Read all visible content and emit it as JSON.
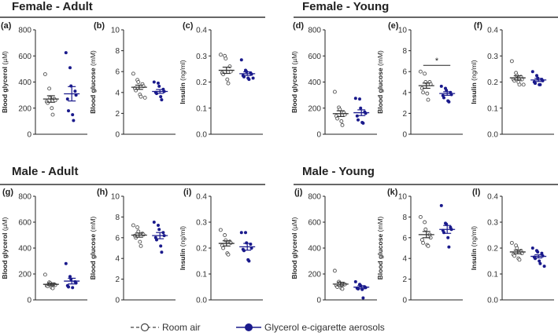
{
  "sections": [
    {
      "title": "Female - Adult"
    },
    {
      "title": "Female - Young"
    },
    {
      "title": "Male - Adult"
    },
    {
      "title": "Male - Young"
    }
  ],
  "legend": {
    "room_air": "Room air",
    "glycerol": "Glycerol e-cigarette aerosols"
  },
  "colors": {
    "room_air": "#333333",
    "glycerol": "#1a1a8c"
  },
  "chart_data": [
    {
      "panel": "(a)",
      "section": "Female - Adult",
      "type": "scatter",
      "ylabel": "Blood glycerol",
      "yunit": "(µM)",
      "ylim": [
        0,
        800
      ],
      "yticks": [
        "0",
        "200",
        "400",
        "600",
        "800"
      ],
      "series": [
        {
          "name": "Room air",
          "values": [
            460,
            350,
            280,
            270,
            260,
            250,
            240,
            200,
            150
          ],
          "mean": 270,
          "sem": 25
        },
        {
          "name": "Glycerol e-cigarette aerosols",
          "values": [
            625,
            510,
            370,
            330,
            300,
            270,
            180,
            150,
            105
          ],
          "mean": 310,
          "sem": 55
        }
      ]
    },
    {
      "panel": "(b)",
      "section": "Female - Adult",
      "type": "scatter",
      "ylabel": "Blood glucose",
      "yunit": "(mM)",
      "ylim": [
        0,
        10
      ],
      "yticks": [
        "0",
        "2",
        "4",
        "6",
        "8",
        "10"
      ],
      "series": [
        {
          "name": "Room air",
          "values": [
            5.8,
            5.2,
            5.0,
            4.8,
            4.6,
            4.4,
            4.2,
            3.8,
            3.6,
            3.5
          ],
          "mean": 4.5,
          "sem": 0.2
        },
        {
          "name": "Glycerol e-cigarette aerosols",
          "values": [
            5.0,
            4.9,
            4.6,
            4.3,
            4.1,
            4.0,
            3.9,
            3.6,
            3.3
          ],
          "mean": 4.1,
          "sem": 0.18
        }
      ]
    },
    {
      "panel": "(c)",
      "section": "Female - Adult",
      "type": "scatter",
      "ylabel": "Insulin",
      "yunit": "(ng/ml)",
      "ylim": [
        0,
        0.4
      ],
      "yticks": [
        "0.0",
        "0.1",
        "0.2",
        "0.3",
        "0.4"
      ],
      "series": [
        {
          "name": "Room air",
          "values": [
            0.305,
            0.3,
            0.29,
            0.26,
            0.24,
            0.235,
            0.23,
            0.21,
            0.195
          ],
          "mean": 0.245,
          "sem": 0.012
        },
        {
          "name": "Glycerol e-cigarette aerosols",
          "values": [
            0.285,
            0.245,
            0.24,
            0.235,
            0.23,
            0.225,
            0.22,
            0.215,
            0.21,
            0.215
          ],
          "mean": 0.232,
          "sem": 0.007
        }
      ]
    },
    {
      "panel": "(d)",
      "section": "Female - Young",
      "type": "scatter",
      "ylabel": "Blood glycerol",
      "yunit": "(µM)",
      "ylim": [
        0,
        800
      ],
      "yticks": [
        "0",
        "200",
        "400",
        "600",
        "800"
      ],
      "series": [
        {
          "name": "Room air",
          "values": [
            325,
            205,
            190,
            165,
            150,
            140,
            120,
            100,
            70
          ],
          "mean": 158,
          "sem": 22
        },
        {
          "name": "Glycerol e-cigarette aerosols",
          "values": [
            275,
            270,
            200,
            170,
            160,
            140,
            110,
            90,
            85
          ],
          "mean": 165,
          "sem": 22
        }
      ]
    },
    {
      "panel": "(e)",
      "section": "Female - Young",
      "type": "scatter",
      "ylabel": "Blood glucose",
      "yunit": "(mM)",
      "ylim": [
        0,
        10
      ],
      "yticks": [
        "0",
        "2",
        "4",
        "6",
        "8",
        "10"
      ],
      "significance": "*",
      "series": [
        {
          "name": "Room air",
          "values": [
            6.0,
            5.8,
            5.0,
            5.0,
            4.8,
            4.4,
            4.0,
            3.9,
            3.3
          ],
          "mean": 4.65,
          "sem": 0.25
        },
        {
          "name": "Glycerol e-cigarette aerosols",
          "values": [
            4.6,
            4.4,
            4.2,
            4.0,
            3.8,
            3.7,
            3.5,
            3.2,
            3.1
          ],
          "mean": 3.9,
          "sem": 0.17
        }
      ]
    },
    {
      "panel": "(f)",
      "section": "Female - Young",
      "type": "scatter",
      "ylabel": "Insulin",
      "yunit": "(ng/ml)",
      "ylim": [
        0,
        0.4
      ],
      "yticks": [
        "0.0",
        "0.1",
        "0.2",
        "0.3",
        "0.4"
      ],
      "series": [
        {
          "name": "Room air",
          "values": [
            0.28,
            0.235,
            0.225,
            0.22,
            0.21,
            0.21,
            0.205,
            0.2,
            0.19,
            0.19
          ],
          "mean": 0.216,
          "sem": 0.008
        },
        {
          "name": "Glycerol e-cigarette aerosols",
          "values": [
            0.24,
            0.225,
            0.215,
            0.21,
            0.205,
            0.2,
            0.195,
            0.19,
            0.19
          ],
          "mean": 0.208,
          "sem": 0.006
        }
      ]
    },
    {
      "panel": "(g)",
      "section": "Male - Adult",
      "type": "scatter",
      "ylabel": "Blood glycerol",
      "yunit": "(µM)",
      "ylim": [
        0,
        800
      ],
      "yticks": [
        "0",
        "200",
        "400",
        "600",
        "800"
      ],
      "series": [
        {
          "name": "Room air",
          "values": [
            195,
            135,
            130,
            120,
            115,
            110,
            105,
            95,
            90
          ],
          "mean": 120,
          "sem": 10
        },
        {
          "name": "Glycerol e-cigarette aerosols",
          "values": [
            280,
            180,
            160,
            140,
            130,
            110,
            100,
            95
          ],
          "mean": 145,
          "sem": 22
        }
      ]
    },
    {
      "panel": "(h)",
      "section": "Male - Adult",
      "type": "scatter",
      "ylabel": "Blood glucose",
      "yunit": "(mM)",
      "ylim": [
        0,
        10
      ],
      "yticks": [
        "0",
        "2",
        "4",
        "6",
        "8",
        "10"
      ],
      "series": [
        {
          "name": "Room air",
          "values": [
            7.2,
            7.0,
            6.6,
            6.4,
            6.3,
            6.2,
            6.0,
            5.6,
            5.2
          ],
          "mean": 6.25,
          "sem": 0.2
        },
        {
          "name": "Glycerol e-cigarette aerosols",
          "values": [
            7.5,
            7.2,
            6.8,
            6.5,
            6.2,
            6.0,
            5.8,
            5.2,
            4.6
          ],
          "mean": 6.2,
          "sem": 0.3
        }
      ]
    },
    {
      "panel": "(i)",
      "section": "Male - Adult",
      "type": "scatter",
      "ylabel": "Insulin",
      "yunit": "(ng/ml)",
      "ylim": [
        0,
        0.4
      ],
      "yticks": [
        "0.0",
        "0.1",
        "0.2",
        "0.3",
        "0.4"
      ],
      "series": [
        {
          "name": "Room air",
          "values": [
            0.27,
            0.25,
            0.23,
            0.225,
            0.22,
            0.21,
            0.2,
            0.18,
            0.175
          ],
          "mean": 0.218,
          "sem": 0.01
        },
        {
          "name": "Glycerol e-cigarette aerosols",
          "values": [
            0.26,
            0.26,
            0.22,
            0.215,
            0.2,
            0.195,
            0.19,
            0.155,
            0.15
          ],
          "mean": 0.205,
          "sem": 0.013
        }
      ]
    },
    {
      "panel": "(j)",
      "section": "Male - Young",
      "type": "scatter",
      "ylabel": "Blood glycerol",
      "yunit": "(µM)",
      "ylim": [
        0,
        800
      ],
      "yticks": [
        "0",
        "200",
        "400",
        "600",
        "800"
      ],
      "series": [
        {
          "name": "Room air",
          "values": [
            225,
            140,
            130,
            120,
            120,
            110,
            100,
            90,
            85
          ],
          "mean": 122,
          "sem": 14
        },
        {
          "name": "Glycerol e-cigarette aerosols",
          "values": [
            140,
            120,
            110,
            100,
            95,
            90,
            85,
            80,
            15
          ],
          "mean": 98,
          "sem": 12
        }
      ]
    },
    {
      "panel": "(k)",
      "section": "Male - Young",
      "type": "scatter",
      "ylabel": "Blood glucose",
      "yunit": "(mM)",
      "ylim": [
        0,
        10
      ],
      "yticks": [
        "0",
        "2",
        "4",
        "6",
        "8",
        "10"
      ],
      "series": [
        {
          "name": "Room air",
          "values": [
            8.0,
            7.5,
            6.8,
            6.3,
            6.0,
            5.8,
            5.5,
            5.3,
            5.2
          ],
          "mean": 6.3,
          "sem": 0.3
        },
        {
          "name": "Glycerol e-cigarette aerosols",
          "values": [
            9.1,
            7.4,
            7.3,
            7.0,
            6.8,
            6.7,
            6.5,
            6.0,
            5.1
          ],
          "mean": 6.8,
          "sem": 0.38
        }
      ]
    },
    {
      "panel": "(l)",
      "section": "Male - Young",
      "type": "scatter",
      "ylabel": "Insulin",
      "yunit": "(ng/ml)",
      "ylim": [
        0,
        0.4
      ],
      "yticks": [
        "0.0",
        "0.1",
        "0.2",
        "0.3",
        "0.4"
      ],
      "series": [
        {
          "name": "Room air",
          "values": [
            0.22,
            0.21,
            0.2,
            0.19,
            0.18,
            0.175,
            0.17,
            0.16,
            0.155
          ],
          "mean": 0.185,
          "sem": 0.007
        },
        {
          "name": "Glycerol e-cigarette aerosols",
          "values": [
            0.2,
            0.19,
            0.185,
            0.18,
            0.17,
            0.165,
            0.16,
            0.15,
            0.14,
            0.13
          ],
          "mean": 0.168,
          "sem": 0.006
        }
      ]
    }
  ]
}
